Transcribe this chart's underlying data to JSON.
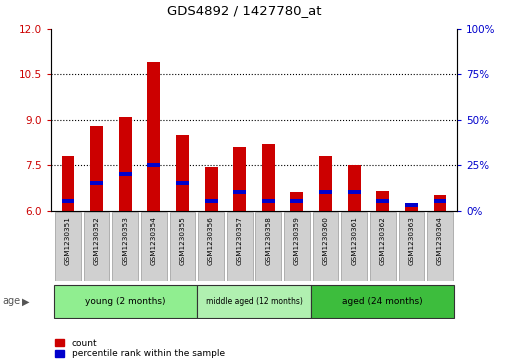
{
  "title": "GDS4892 / 1427780_at",
  "samples": [
    "GSM1230351",
    "GSM1230352",
    "GSM1230353",
    "GSM1230354",
    "GSM1230355",
    "GSM1230356",
    "GSM1230357",
    "GSM1230358",
    "GSM1230359",
    "GSM1230360",
    "GSM1230361",
    "GSM1230362",
    "GSM1230363",
    "GSM1230364"
  ],
  "count_values": [
    7.8,
    8.8,
    9.1,
    10.9,
    8.5,
    7.45,
    8.1,
    8.2,
    6.6,
    7.8,
    7.5,
    6.65,
    6.2,
    6.5
  ],
  "percentile_values": [
    5,
    15,
    20,
    25,
    15,
    5,
    10,
    5,
    5,
    10,
    10,
    5,
    3,
    5
  ],
  "base_value": 6.0,
  "ylim_left": [
    6,
    12
  ],
  "ylim_right": [
    0,
    100
  ],
  "yticks_left": [
    6,
    7.5,
    9,
    10.5,
    12
  ],
  "yticks_right": [
    0,
    25,
    50,
    75,
    100
  ],
  "groups": [
    {
      "label": "young (2 months)",
      "start": 0,
      "end": 5,
      "color": "#90ee90"
    },
    {
      "label": "middle aged (12 months)",
      "start": 5,
      "end": 9,
      "color": "#b0f0b0"
    },
    {
      "label": "aged (24 months)",
      "start": 9,
      "end": 14,
      "color": "#3dbd3d"
    }
  ],
  "bar_color": "#cc0000",
  "percentile_color": "#0000cc",
  "bar_width": 0.45,
  "axis_color_left": "#cc0000",
  "axis_color_right": "#0000cc",
  "background_color": "#ffffff",
  "grid_color": "#000000",
  "age_label": "age",
  "legend_count": "count",
  "legend_percentile": "percentile rank within the sample",
  "label_box_color": "#d0d0d0",
  "label_box_edge": "#999999"
}
